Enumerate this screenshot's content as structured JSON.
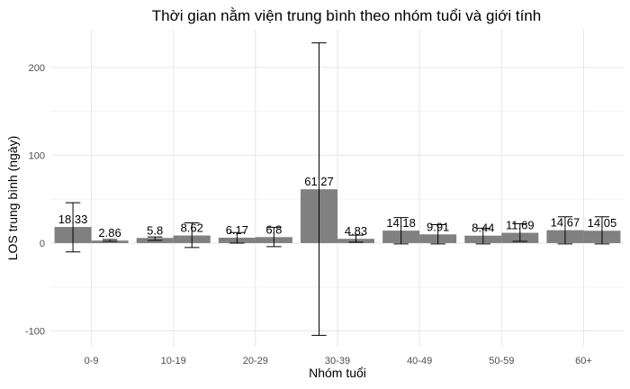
{
  "chart_data": {
    "type": "bar",
    "title": "Thời gian nằm viện trung bình theo nhóm tuổi và giới tính",
    "xlabel": "Nhóm tuổi",
    "ylabel": "LOS trung bình (ngày)",
    "categories": [
      "0-9",
      "10-19",
      "20-29",
      "30-39",
      "40-49",
      "50-59",
      "60+"
    ],
    "series": [
      {
        "values": [
          18.33,
          5.8,
          6.17,
          61.27,
          14.18,
          8.44,
          14.67
        ],
        "error_low": [
          -10,
          3,
          0,
          -105,
          -1,
          -1,
          -1
        ],
        "error_high": [
          46,
          7,
          12,
          228,
          29,
          17,
          30
        ],
        "labels": [
          "18.33",
          "5.8",
          "6.17",
          "61.27",
          "14.18",
          "8.44",
          "14.67"
        ]
      },
      {
        "values": [
          2.86,
          8.62,
          6.8,
          4.83,
          9.91,
          11.69,
          14.05
        ],
        "error_low": [
          2,
          -5,
          -4,
          1,
          -1,
          2,
          -1
        ],
        "error_high": [
          4,
          23,
          18,
          9,
          21,
          22,
          30
        ],
        "labels": [
          "2.86",
          "8.62",
          "6.8",
          "4.83",
          "9.91",
          "11.69",
          "14.05"
        ]
      }
    ],
    "ylim": [
      -118,
      243
    ],
    "yticks": [
      -100,
      0,
      100,
      200
    ],
    "grid": true,
    "legend": "none",
    "bar_color": "#808080",
    "theme": "minimal"
  }
}
